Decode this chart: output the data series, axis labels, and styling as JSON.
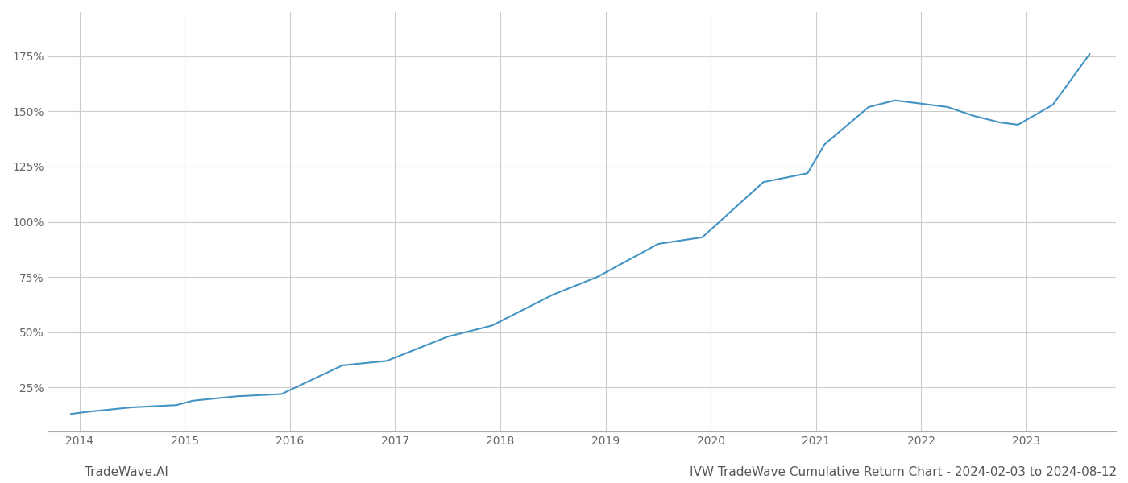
{
  "title": "IVW TradeWave Cumulative Return Chart - 2024-02-03 to 2024-08-12",
  "watermark": "TradeWave.AI",
  "line_color": "#4393c3",
  "background_color": "#ffffff",
  "grid_color": "#cccccc",
  "x_years": [
    2014,
    2015,
    2016,
    2017,
    2018,
    2019,
    2020,
    2021,
    2022,
    2023
  ],
  "x_values": [
    2013.92,
    2014.08,
    2014.5,
    2014.92,
    2015.08,
    2015.5,
    2015.92,
    2016.5,
    2016.92,
    2017.5,
    2017.92,
    2018.5,
    2018.92,
    2019.5,
    2019.92,
    2020.5,
    2020.92,
    2021.08,
    2021.5,
    2021.75,
    2021.92,
    2022.25,
    2022.5,
    2022.75,
    2022.92,
    2023.25,
    2023.6
  ],
  "y_values": [
    13,
    14,
    16,
    17,
    19,
    21,
    22,
    35,
    37,
    48,
    53,
    67,
    75,
    90,
    93,
    118,
    122,
    135,
    152,
    155,
    154,
    152,
    148,
    145,
    144,
    153,
    176
  ],
  "yticks": [
    25,
    50,
    75,
    100,
    125,
    150,
    175
  ],
  "ylim": [
    5,
    195
  ],
  "xlim": [
    2013.7,
    2023.85
  ],
  "title_fontsize": 11,
  "watermark_fontsize": 11,
  "axis_fontsize": 10,
  "line_width": 1.5
}
